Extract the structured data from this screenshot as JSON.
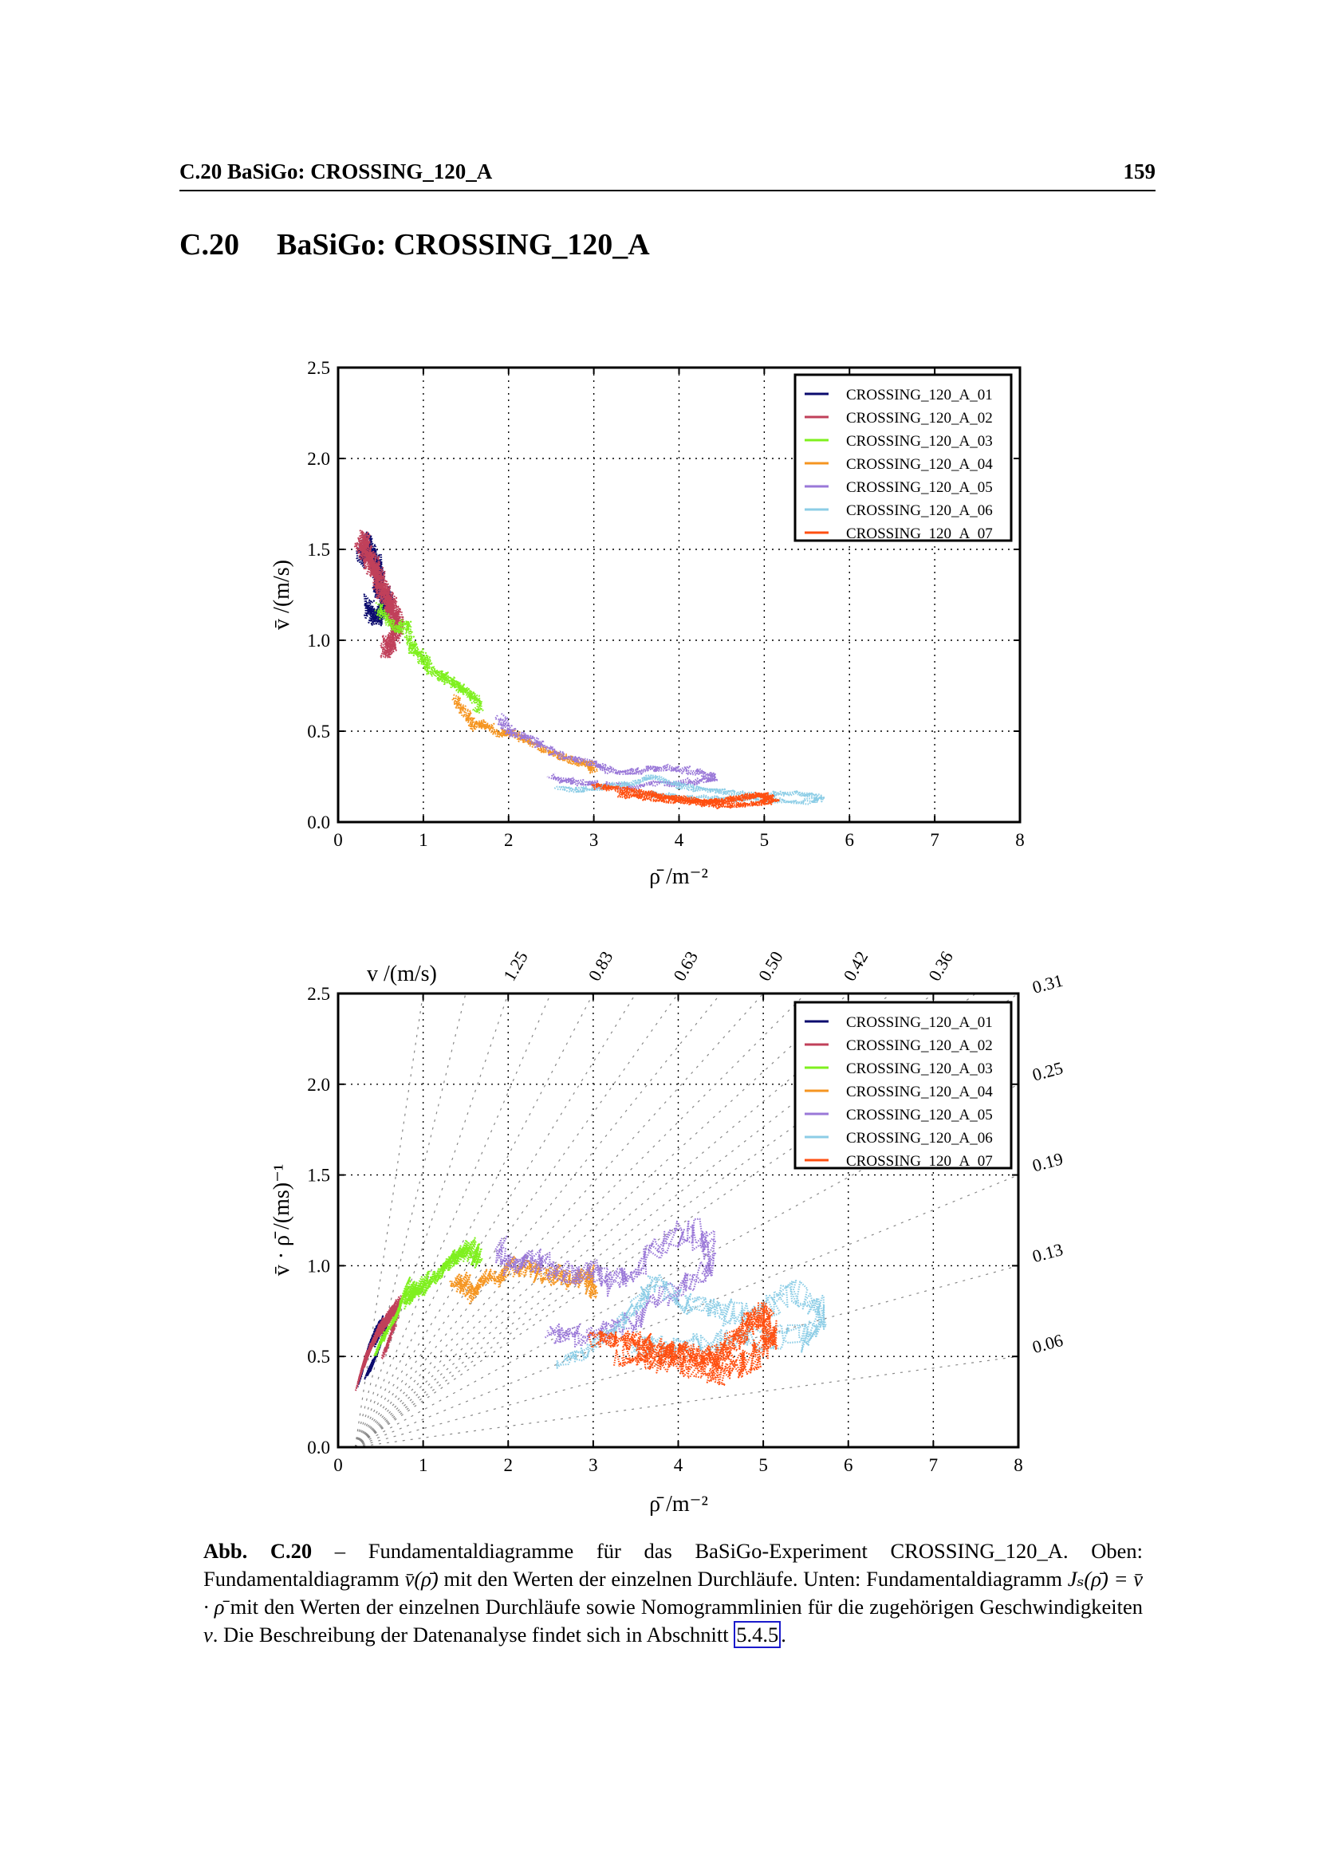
{
  "running_head": {
    "title": "C.20 BaSiGo: CROSSING_120_A",
    "page_number": "159"
  },
  "section": {
    "number": "C.20",
    "title": "BaSiGo: CROSSING_120_A"
  },
  "series_colors": {
    "CROSSING_120_A_01": "#0b0b6e",
    "CROSSING_120_A_02": "#c0405a",
    "CROSSING_120_A_03": "#7ff01e",
    "CROSSING_120_A_04": "#f59520",
    "CROSSING_120_A_05": "#9a78d8",
    "CROSSING_120_A_06": "#8ccde6",
    "CROSSING_120_A_07": "#ff4f10"
  },
  "chart_data": [
    {
      "type": "line",
      "title": "",
      "xlabel": "ρ̄  /m⁻²",
      "ylabel": "v̄  /(m/s)",
      "xlim": [
        0,
        8
      ],
      "ylim": [
        0,
        2.5
      ],
      "xticks": [
        "0",
        "1",
        "2",
        "3",
        "4",
        "5",
        "6",
        "7",
        "8"
      ],
      "yticks": [
        "0.0",
        "0.5",
        "1.0",
        "1.5",
        "2.0",
        "2.5"
      ],
      "grid": true,
      "legend_position": "top-right",
      "series": [
        {
          "name": "CROSSING_120_A_01",
          "x": [
            0.25,
            0.3,
            0.35,
            0.4,
            0.45,
            0.5,
            0.45,
            0.55,
            0.6,
            0.5,
            0.4,
            0.35
          ],
          "y": [
            1.45,
            1.5,
            1.55,
            1.48,
            1.42,
            1.35,
            1.3,
            1.25,
            1.2,
            1.15,
            1.12,
            1.2
          ]
        },
        {
          "name": "CROSSING_120_A_02",
          "x": [
            0.25,
            0.3,
            0.35,
            0.4,
            0.45,
            0.5,
            0.55,
            0.6,
            0.65,
            0.7,
            0.65,
            0.55
          ],
          "y": [
            1.5,
            1.55,
            1.45,
            1.42,
            1.38,
            1.3,
            1.25,
            1.2,
            1.15,
            1.1,
            1.0,
            0.95
          ]
        },
        {
          "name": "CROSSING_120_A_03",
          "x": [
            0.45,
            0.55,
            0.7,
            0.8,
            0.85,
            0.9,
            1.0,
            1.05,
            1.2,
            1.3,
            1.4,
            1.5,
            1.6,
            1.65
          ],
          "y": [
            1.18,
            1.12,
            1.05,
            1.1,
            0.98,
            0.95,
            0.9,
            0.85,
            0.8,
            0.78,
            0.75,
            0.72,
            0.68,
            0.62
          ]
        },
        {
          "name": "CROSSING_120_A_04",
          "x": [
            1.35,
            1.5,
            1.6,
            1.7,
            1.9,
            2.0,
            2.2,
            2.4,
            2.6,
            2.8,
            2.95,
            3.0
          ],
          "y": [
            0.68,
            0.6,
            0.52,
            0.55,
            0.48,
            0.5,
            0.45,
            0.4,
            0.36,
            0.33,
            0.32,
            0.28
          ]
        },
        {
          "name": "CROSSING_120_A_05",
          "x": [
            1.9,
            2.0,
            2.2,
            2.4,
            2.7,
            3.0,
            3.2,
            3.5,
            3.9,
            4.3,
            4.4,
            4.0,
            3.5,
            3.1,
            2.8,
            2.5
          ],
          "y": [
            0.58,
            0.5,
            0.47,
            0.42,
            0.35,
            0.33,
            0.28,
            0.28,
            0.3,
            0.27,
            0.23,
            0.22,
            0.2,
            0.2,
            0.22,
            0.25
          ]
        },
        {
          "name": "CROSSING_120_A_06",
          "x": [
            2.6,
            2.9,
            3.2,
            3.5,
            3.7,
            4.0,
            4.3,
            4.6,
            5.0,
            5.4,
            5.7,
            5.5,
            5.0,
            4.5,
            4.0,
            3.5
          ],
          "y": [
            0.18,
            0.18,
            0.2,
            0.22,
            0.25,
            0.2,
            0.18,
            0.16,
            0.15,
            0.16,
            0.13,
            0.11,
            0.12,
            0.13,
            0.14,
            0.16
          ]
        },
        {
          "name": "CROSSING_120_A_07",
          "x": [
            3.0,
            3.3,
            3.6,
            3.8,
            4.0,
            4.2,
            4.4,
            4.6,
            4.8,
            5.0,
            5.1,
            4.9,
            4.5,
            4.1,
            3.7,
            3.3
          ],
          "y": [
            0.2,
            0.18,
            0.16,
            0.14,
            0.13,
            0.12,
            0.11,
            0.12,
            0.14,
            0.15,
            0.12,
            0.1,
            0.09,
            0.11,
            0.13,
            0.15
          ]
        }
      ]
    },
    {
      "type": "line",
      "title": "",
      "xlabel": "ρ̄  /m⁻²",
      "ylabel": "v̄ · ρ̄  /(ms)⁻¹",
      "top_axis_label": "v  /(m/s)",
      "xlim": [
        0,
        8
      ],
      "ylim": [
        0,
        2.5
      ],
      "xticks": [
        "0",
        "1",
        "2",
        "3",
        "4",
        "5",
        "6",
        "7",
        "8"
      ],
      "yticks": [
        "0.0",
        "0.5",
        "1.0",
        "1.5",
        "2.0",
        "2.5"
      ],
      "grid": true,
      "legend_position": "top-right",
      "nomogram_top_labels": [
        {
          "x": 2,
          "label": "1.25"
        },
        {
          "x": 3,
          "label": "0.83"
        },
        {
          "x": 4,
          "label": "0.63"
        },
        {
          "x": 5,
          "label": "0.50"
        },
        {
          "x": 6,
          "label": "0.42"
        },
        {
          "x": 7,
          "label": "0.36"
        }
      ],
      "nomogram_right_labels": [
        {
          "y": 2.5,
          "label": "0.31"
        },
        {
          "y": 2.0,
          "label": "0.25"
        },
        {
          "y": 1.5,
          "label": "0.19"
        },
        {
          "y": 1.0,
          "label": "0.13"
        },
        {
          "y": 0.5,
          "label": "0.06"
        }
      ],
      "series_note": "same runs as top chart, plotted as v̄·ρ̄ over ρ̄"
    }
  ],
  "caption": {
    "label": "Abb. C.20",
    "dash": " – ",
    "text_1": "Fundamentaldiagramme für das BaSiGo-Experiment CROSSING_120_A. Oben: Fundamentaldiagramm ",
    "math_1": "v̄(ρ̄)",
    "text_2": " mit den Werten der einzelnen Durchläufe. Unten: Fundamentaldiagramm ",
    "math_2": "Jₛ(ρ̄) = v̄ · ρ̄",
    "text_3": " mit den Werten der einzelnen Durchläufe sowie Nomogrammlinien für die zugehörigen Geschwindigkeiten ",
    "math_3": "v",
    "text_4": ". Die Beschreibung der Datenanalyse findet sich in Abschnitt ",
    "ref": "5.4.5",
    "text_5": "."
  }
}
